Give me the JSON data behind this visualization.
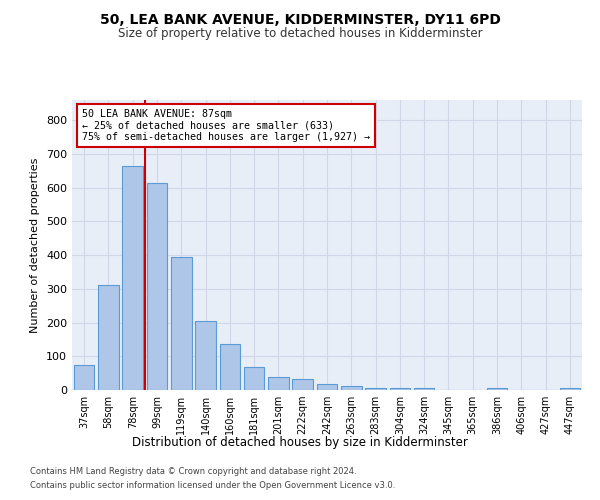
{
  "title": "50, LEA BANK AVENUE, KIDDERMINSTER, DY11 6PD",
  "subtitle": "Size of property relative to detached houses in Kidderminster",
  "xlabel": "Distribution of detached houses by size in Kidderminster",
  "ylabel": "Number of detached properties",
  "footnote1": "Contains HM Land Registry data © Crown copyright and database right 2024.",
  "footnote2": "Contains public sector information licensed under the Open Government Licence v3.0.",
  "categories": [
    "37sqm",
    "58sqm",
    "78sqm",
    "99sqm",
    "119sqm",
    "140sqm",
    "160sqm",
    "181sqm",
    "201sqm",
    "222sqm",
    "242sqm",
    "263sqm",
    "283sqm",
    "304sqm",
    "324sqm",
    "345sqm",
    "365sqm",
    "386sqm",
    "406sqm",
    "427sqm",
    "447sqm"
  ],
  "values": [
    75,
    310,
    665,
    615,
    395,
    205,
    135,
    68,
    40,
    32,
    17,
    12,
    5,
    5,
    5,
    0,
    0,
    5,
    0,
    0,
    5
  ],
  "bar_color": "#aec6e8",
  "bar_edge_color": "#5b9bd5",
  "grid_color": "#d0d8e8",
  "background_color": "#e8eef8",
  "red_line_x": 2.5,
  "annotation_text1": "50 LEA BANK AVENUE: 87sqm",
  "annotation_text2": "← 25% of detached houses are smaller (633)",
  "annotation_text3": "75% of semi-detached houses are larger (1,927) →",
  "annotation_box_color": "#ffffff",
  "annotation_border_color": "#cc0000",
  "red_line_color": "#cc0000",
  "ylim": [
    0,
    860
  ],
  "yticks": [
    0,
    100,
    200,
    300,
    400,
    500,
    600,
    700,
    800
  ]
}
